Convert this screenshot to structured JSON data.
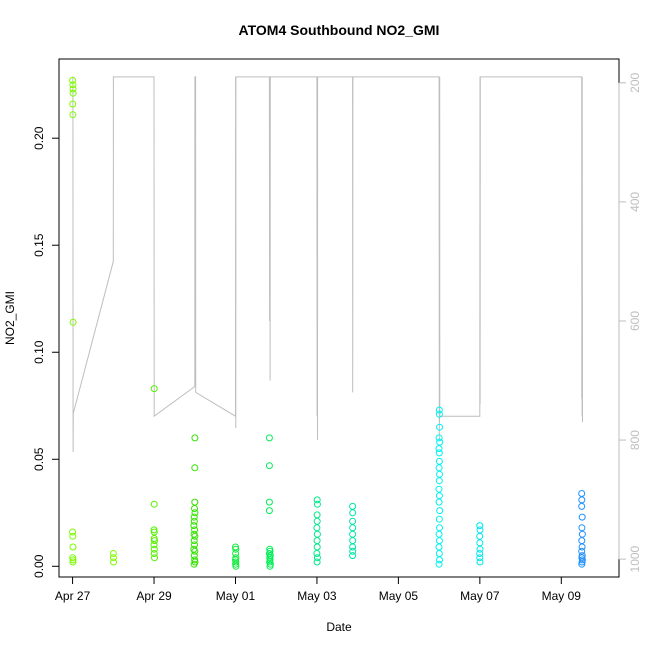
{
  "chart_data": {
    "type": "scatter",
    "title": "ATOM4 Southbound NO2_GMI",
    "xlabel": "Date",
    "ylabel": "NO2_GMI",
    "xlim": [
      "2017-04-26T16:00",
      "2017-05-10T10:00"
    ],
    "ylim": [
      -0.005,
      0.237
    ],
    "yticks": [
      0.0,
      0.05,
      0.1,
      0.15,
      0.2
    ],
    "ytick_labels": [
      "0.00",
      "0.05",
      "0.10",
      "0.15",
      "0.20"
    ],
    "xticks": [
      "2017-04-27",
      "2017-04-29",
      "2017-05-01",
      "2017-05-03",
      "2017-05-05",
      "2017-05-07",
      "2017-05-09"
    ],
    "xtick_labels": [
      "Apr 27",
      "Apr 29",
      "May 01",
      "May 03",
      "May 05",
      "May 07",
      "May 09"
    ],
    "right_axis": {
      "color": "#bebebe",
      "reversed": true,
      "ylim": [
        1030,
        160
      ],
      "ticks": [
        200,
        400,
        600,
        800,
        1000
      ],
      "tick_labels": [
        "200",
        "400",
        "600",
        "800",
        "1000"
      ]
    },
    "grid": false,
    "legend": "none",
    "series": [
      {
        "color": "#7CFC00",
        "points": [
          [
            "2017-04-27T00:00",
            0.227
          ],
          [
            "2017-04-27T00:10",
            0.225
          ],
          [
            "2017-04-27T00:15",
            0.223
          ],
          [
            "2017-04-27T00:20",
            0.221
          ],
          [
            "2017-04-27T00:05",
            0.216
          ],
          [
            "2017-04-27T00:12",
            0.211
          ],
          [
            "2017-04-27T00:18",
            0.114
          ],
          [
            "2017-04-27T00:00",
            0.016
          ],
          [
            "2017-04-27T00:08",
            0.014
          ],
          [
            "2017-04-27T00:15",
            0.009
          ],
          [
            "2017-04-27T00:05",
            0.004
          ],
          [
            "2017-04-27T00:20",
            0.003
          ],
          [
            "2017-04-27T00:10",
            0.002
          ],
          [
            "2017-04-28T00:00",
            0.006
          ],
          [
            "2017-04-28T00:05",
            0.004
          ],
          [
            "2017-04-28T00:10",
            0.002
          ]
        ]
      },
      {
        "color": "#55F000",
        "points": [
          [
            "2017-04-29T00:05",
            0.083
          ],
          [
            "2017-04-29T00:05",
            0.029
          ],
          [
            "2017-04-29T00:00",
            0.017
          ],
          [
            "2017-04-29T00:10",
            0.016
          ],
          [
            "2017-04-29T00:05",
            0.013
          ],
          [
            "2017-04-29T00:15",
            0.012
          ],
          [
            "2017-04-29T00:00",
            0.01
          ],
          [
            "2017-04-29T00:10",
            0.008
          ],
          [
            "2017-04-29T00:05",
            0.006
          ],
          [
            "2017-04-29T00:15",
            0.004
          ]
        ]
      },
      {
        "color": "#33E200",
        "points": [
          [
            "2017-04-30T00:05",
            0.06
          ],
          [
            "2017-04-30T00:00",
            0.046
          ],
          [
            "2017-04-30T00:00",
            0.03
          ],
          [
            "2017-04-29T23:50",
            0.027
          ],
          [
            "2017-04-30T00:10",
            0.025
          ],
          [
            "2017-04-29T23:40",
            0.023
          ],
          [
            "2017-04-29T23:45",
            0.021
          ],
          [
            "2017-04-29T23:30",
            0.019
          ],
          [
            "2017-04-29T23:55",
            0.017
          ],
          [
            "2017-04-29T23:35",
            0.015
          ],
          [
            "2017-04-30T00:05",
            0.014
          ],
          [
            "2017-04-29T23:40",
            0.012
          ],
          [
            "2017-04-29T23:50",
            0.01
          ],
          [
            "2017-04-29T23:30",
            0.008
          ],
          [
            "2017-04-30T00:00",
            0.007
          ],
          [
            "2017-04-29T23:45",
            0.005
          ],
          [
            "2017-04-29T23:55",
            0.003
          ],
          [
            "2017-04-30T00:10",
            0.002
          ],
          [
            "2017-04-29T23:35",
            0.001
          ]
        ]
      },
      {
        "color": "#0EEB3A",
        "points": [
          [
            "2017-05-01T00:00",
            0.009
          ],
          [
            "2017-05-01T00:10",
            0.008
          ],
          [
            "2017-05-01T00:05",
            0.006
          ],
          [
            "2017-05-01T00:15",
            0.004
          ],
          [
            "2017-05-01T00:00",
            0.003
          ],
          [
            "2017-05-01T00:10",
            0.002
          ],
          [
            "2017-05-01T00:05",
            0.001
          ],
          [
            "2017-05-01T00:15",
            0.0
          ]
        ]
      },
      {
        "color": "#00EE55",
        "points": [
          [
            "2017-05-01T20:00",
            0.06
          ],
          [
            "2017-05-01T20:00",
            0.047
          ],
          [
            "2017-05-01T20:00",
            0.03
          ],
          [
            "2017-05-01T20:00",
            0.026
          ],
          [
            "2017-05-01T20:10",
            0.008
          ],
          [
            "2017-05-01T20:20",
            0.007
          ],
          [
            "2017-05-01T20:00",
            0.006
          ],
          [
            "2017-05-01T20:30",
            0.005
          ],
          [
            "2017-05-01T20:15",
            0.004
          ],
          [
            "2017-05-01T20:25",
            0.003
          ],
          [
            "2017-05-01T20:05",
            0.002
          ],
          [
            "2017-05-01T20:35",
            0.001
          ],
          [
            "2017-05-01T20:20",
            0.0
          ]
        ]
      },
      {
        "color": "#00E88A",
        "points": [
          [
            "2017-05-03T00:10",
            0.031
          ],
          [
            "2017-05-03T00:15",
            0.029
          ],
          [
            "2017-05-03T00:05",
            0.024
          ],
          [
            "2017-05-03T00:10",
            0.021
          ],
          [
            "2017-05-03T00:00",
            0.018
          ],
          [
            "2017-05-03T00:15",
            0.015
          ],
          [
            "2017-05-03T00:05",
            0.012
          ],
          [
            "2017-05-03T00:10",
            0.009
          ],
          [
            "2017-05-03T00:00",
            0.006
          ],
          [
            "2017-05-03T00:15",
            0.004
          ],
          [
            "2017-05-03T00:05",
            0.002
          ]
        ]
      },
      {
        "color": "#00E4A8",
        "points": [
          [
            "2017-05-03T21:00",
            0.028
          ],
          [
            "2017-05-03T21:05",
            0.025
          ],
          [
            "2017-05-03T21:00",
            0.021
          ],
          [
            "2017-05-03T21:05",
            0.018
          ],
          [
            "2017-05-03T21:00",
            0.015
          ],
          [
            "2017-05-03T21:05",
            0.012
          ],
          [
            "2017-05-03T21:00",
            0.009
          ],
          [
            "2017-05-03T21:05",
            0.007
          ],
          [
            "2017-05-03T21:00",
            0.005
          ]
        ]
      },
      {
        "color": "#00F2F2",
        "points": [
          [
            "2017-05-06T00:05",
            0.073
          ],
          [
            "2017-05-06T00:10",
            0.071
          ],
          [
            "2017-05-06T00:15",
            0.065
          ],
          [
            "2017-05-06T00:00",
            0.06
          ],
          [
            "2017-05-06T00:20",
            0.058
          ],
          [
            "2017-05-05T23:55",
            0.055
          ],
          [
            "2017-05-06T00:05",
            0.053
          ],
          [
            "2017-05-06T00:10",
            0.049
          ],
          [
            "2017-05-06T00:00",
            0.046
          ],
          [
            "2017-05-06T00:15",
            0.043
          ],
          [
            "2017-05-06T00:05",
            0.04
          ],
          [
            "2017-05-05T23:55",
            0.036
          ],
          [
            "2017-05-06T00:10",
            0.033
          ],
          [
            "2017-05-06T00:00",
            0.03
          ],
          [
            "2017-05-06T00:20",
            0.026
          ],
          [
            "2017-05-06T00:05",
            0.022
          ],
          [
            "2017-05-06T00:15",
            0.018
          ],
          [
            "2017-05-06T00:00",
            0.015
          ],
          [
            "2017-05-06T00:10",
            0.012
          ],
          [
            "2017-05-05T23:55",
            0.009
          ],
          [
            "2017-05-06T00:05",
            0.006
          ],
          [
            "2017-05-06T00:15",
            0.003
          ],
          [
            "2017-05-06T00:00",
            0.001
          ]
        ]
      },
      {
        "color": "#00E6F0",
        "points": [
          [
            "2017-05-07T00:00",
            0.019
          ],
          [
            "2017-05-07T00:05",
            0.017
          ],
          [
            "2017-05-06T23:55",
            0.014
          ],
          [
            "2017-05-07T00:00",
            0.011
          ],
          [
            "2017-05-07T00:05",
            0.008
          ],
          [
            "2017-05-06T23:55",
            0.006
          ],
          [
            "2017-05-07T00:00",
            0.004
          ],
          [
            "2017-05-07T00:05",
            0.002
          ]
        ]
      },
      {
        "color": "#1E90FF",
        "points": [
          [
            "2017-05-09T12:00",
            0.034
          ],
          [
            "2017-05-09T12:05",
            0.031
          ],
          [
            "2017-05-09T12:00",
            0.028
          ],
          [
            "2017-05-09T12:20",
            0.023
          ],
          [
            "2017-05-09T12:10",
            0.018
          ],
          [
            "2017-05-09T12:25",
            0.015
          ],
          [
            "2017-05-09T12:05",
            0.012
          ],
          [
            "2017-05-09T12:15",
            0.009
          ],
          [
            "2017-05-09T12:00",
            0.007
          ],
          [
            "2017-05-09T12:20",
            0.005
          ],
          [
            "2017-05-09T12:10",
            0.004
          ],
          [
            "2017-05-09T12:25",
            0.003
          ],
          [
            "2017-05-09T12:15",
            0.002
          ],
          [
            "2017-05-09T12:05",
            0.001
          ]
        ]
      }
    ],
    "pressure_track": {
      "color": "#bebebe",
      "points": [
        [
          "2017-04-27T00:00",
          190
        ],
        [
          "2017-04-27T00:10",
          190
        ],
        [
          "2017-04-27T00:15",
          500
        ],
        [
          "2017-04-27T00:20",
          820
        ],
        [
          "2017-04-27T00:25",
          755
        ],
        [
          "2017-04-28T00:00",
          500
        ],
        [
          "2017-04-28T00:05",
          190
        ],
        [
          "2017-04-29T00:00",
          190
        ],
        [
          "2017-04-29T00:05",
          760
        ],
        [
          "2017-04-30T00:00",
          710
        ],
        [
          "2017-04-30T00:05",
          190
        ],
        [
          "2017-04-30T00:30",
          190
        ],
        [
          "2017-04-30T00:35",
          720
        ],
        [
          "2017-05-01T00:00",
          760
        ],
        [
          "2017-05-01T00:05",
          190
        ],
        [
          "2017-05-01T00:10",
          780
        ],
        [
          "2017-05-01T00:15",
          190
        ],
        [
          "2017-05-01T20:00",
          190
        ],
        [
          "2017-05-01T20:05",
          600
        ],
        [
          "2017-05-01T20:10",
          190
        ],
        [
          "2017-05-01T20:20",
          190
        ],
        [
          "2017-05-01T20:25",
          700
        ],
        [
          "2017-05-01T20:30",
          190
        ],
        [
          "2017-05-03T00:00",
          190
        ],
        [
          "2017-05-03T00:05",
          760
        ],
        [
          "2017-05-03T00:10",
          470
        ],
        [
          "2017-05-03T00:15",
          280
        ],
        [
          "2017-05-03T00:20",
          800
        ],
        [
          "2017-05-03T00:25",
          190
        ],
        [
          "2017-05-03T21:00",
          190
        ],
        [
          "2017-05-03T21:05",
          720
        ],
        [
          "2017-05-03T21:10",
          190
        ],
        [
          "2017-05-06T00:00",
          190
        ],
        [
          "2017-05-06T00:05",
          800
        ],
        [
          "2017-05-06T00:10",
          190
        ],
        [
          "2017-05-06T00:15",
          770
        ],
        [
          "2017-05-06T00:20",
          190
        ],
        [
          "2017-05-06T00:25",
          760
        ],
        [
          "2017-05-07T00:00",
          760
        ],
        [
          "2017-05-07T00:05",
          190
        ],
        [
          "2017-05-07T00:10",
          740
        ],
        [
          "2017-05-07T00:15",
          190
        ],
        [
          "2017-05-09T12:00",
          190
        ],
        [
          "2017-05-09T12:05",
          730
        ],
        [
          "2017-05-09T12:10",
          190
        ],
        [
          "2017-05-09T12:15",
          760
        ],
        [
          "2017-05-09T12:20",
          190
        ],
        [
          "2017-05-09T12:30",
          770
        ]
      ]
    }
  }
}
